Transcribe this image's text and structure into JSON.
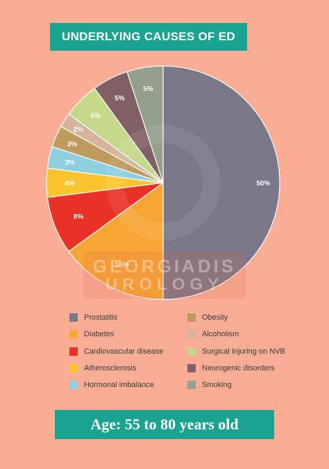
{
  "title": "UNDERLYING CAUSES OF ED",
  "watermark": {
    "line1": "GEORGIADIS",
    "line2": "UROLOGY"
  },
  "footer": "Age: 55 to 80 years old",
  "chart_data": {
    "type": "pie",
    "title": "UNDERLYING CAUSES OF ED",
    "legend_position": "bottom",
    "slices": [
      {
        "label": "Prostatitis",
        "value": 50,
        "display": "50%",
        "color": "#7a7788"
      },
      {
        "label": "Diabetes",
        "value": 15,
        "display": "15%",
        "color": "#f7a535"
      },
      {
        "label": "Cardiovascular disease",
        "value": 8,
        "display": "8%",
        "color": "#e83228"
      },
      {
        "label": "Atherosclerosis",
        "value": 4,
        "display": "4%",
        "color": "#fcc530"
      },
      {
        "label": "Hormonal imbalance",
        "value": 3,
        "display": "3%",
        "color": "#8ecfe0"
      },
      {
        "label": "Obesity",
        "value": 3,
        "display": "3%",
        "color": "#bf9a5e"
      },
      {
        "label": "Alcoholism",
        "value": 2,
        "display": "2%",
        "color": "#d4b59c"
      },
      {
        "label": "Surgical Injuring on NVB",
        "value": 5,
        "display": "5%",
        "color": "#c6d98a"
      },
      {
        "label": "Neurogenic disorders",
        "value": 5,
        "display": "5%",
        "color": "#816065"
      },
      {
        "label": "Smoking",
        "value": 5,
        "display": "5%",
        "color": "#95a08c"
      }
    ],
    "legend_order": [
      "Prostatitis",
      "Diabetes",
      "Cardiovascular disease",
      "Atherosclerosis",
      "Hormonal imbalance",
      "Obesity",
      "Alcoholism",
      "Surgical Injuring on NVB",
      "Neurogenic disorders",
      "Smoking"
    ]
  }
}
